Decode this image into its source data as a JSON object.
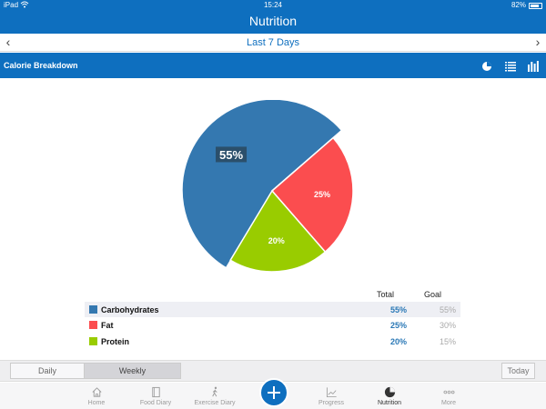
{
  "status_bar": {
    "carrier": "iPad",
    "time": "15:24",
    "battery": "82%"
  },
  "nav": {
    "title": "Nutrition"
  },
  "date_nav": {
    "label": "Last 7 Days",
    "prev_icon": "chevron-left-icon",
    "next_icon": "chevron-right-icon"
  },
  "section": {
    "title": "Calorie Breakdown",
    "view_icons": [
      "pie-chart-icon",
      "list-icon",
      "bar-chart-icon"
    ]
  },
  "colors": {
    "accent": "#0e6fbf",
    "carbs": "#3478b0",
    "fat": "#fb4d4f",
    "protein": "#99cc00"
  },
  "chart_data": {
    "type": "pie",
    "slices": [
      {
        "label": "Carbohydrates",
        "value": 55,
        "display": "55%"
      },
      {
        "label": "Fat",
        "value": 25,
        "display": "25%"
      },
      {
        "label": "Protein",
        "value": 20,
        "display": "20%"
      }
    ]
  },
  "table": {
    "headers": {
      "total": "Total",
      "goal": "Goal"
    },
    "rows": [
      {
        "name": "Carbohydrates",
        "total": "55%",
        "goal": "55%"
      },
      {
        "name": "Fat",
        "total": "25%",
        "goal": "30%"
      },
      {
        "name": "Protein",
        "total": "20%",
        "goal": "15%"
      }
    ]
  },
  "range": {
    "daily": "Daily",
    "weekly": "Weekly",
    "selected": "Weekly",
    "today": "Today"
  },
  "tabs": [
    {
      "label": "Home",
      "icon": "home-icon"
    },
    {
      "label": "Food Diary",
      "icon": "book-icon"
    },
    {
      "label": "Exercise Diary",
      "icon": "walking-icon"
    },
    {
      "label": "Progress",
      "icon": "line-chart-icon"
    },
    {
      "label": "Nutrition",
      "icon": "pie-chart-icon",
      "active": true
    },
    {
      "label": "More",
      "icon": "more-icon"
    }
  ]
}
